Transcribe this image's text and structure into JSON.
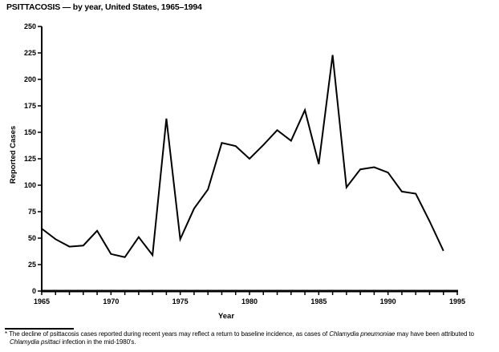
{
  "page": {
    "background": "#ffffff",
    "ink": "#000000"
  },
  "title": "PSITTACOSIS — by year, United States, 1965–1994",
  "chart_data": {
    "type": "line",
    "title": "PSITTACOSIS — by year, United States, 1965–1994",
    "xlabel": "Year",
    "ylabel": "Reported Cases",
    "x": [
      1965,
      1966,
      1967,
      1968,
      1969,
      1970,
      1971,
      1972,
      1973,
      1974,
      1975,
      1976,
      1977,
      1978,
      1979,
      1980,
      1981,
      1982,
      1983,
      1984,
      1985,
      1986,
      1987,
      1988,
      1989,
      1990,
      1991,
      1992,
      1993,
      1994
    ],
    "values": [
      59,
      49,
      42,
      43,
      57,
      35,
      32,
      51,
      34,
      163,
      49,
      78,
      96,
      140,
      137,
      125,
      138,
      152,
      142,
      171,
      120,
      223,
      98,
      115,
      117,
      112,
      94,
      92,
      66,
      38
    ],
    "xlim": [
      1965,
      1995
    ],
    "ylim": [
      0,
      250
    ],
    "y_ticks": [
      0,
      25,
      50,
      75,
      100,
      125,
      150,
      175,
      200,
      225,
      250
    ],
    "x_ticks_labeled": [
      1965,
      1970,
      1975,
      1980,
      1985,
      1990,
      1995
    ],
    "x_minor_tick_step_years": 1,
    "grid": false,
    "legend": "none",
    "line_color": "#000000",
    "axis_color": "#000000"
  },
  "footnote": {
    "marker": "*",
    "parts": [
      {
        "text": "The decline of psittacosis cases reported during recent years may reflect a return to baseline incidence, as cases of ",
        "italic": false
      },
      {
        "text": "Chlamydia pneumoniae",
        "italic": true
      },
      {
        "text": " may have been attributed to ",
        "italic": false
      },
      {
        "text": "Chlamydia psittaci",
        "italic": true
      },
      {
        "text": " infection in the mid-1980's.",
        "italic": false
      }
    ]
  }
}
